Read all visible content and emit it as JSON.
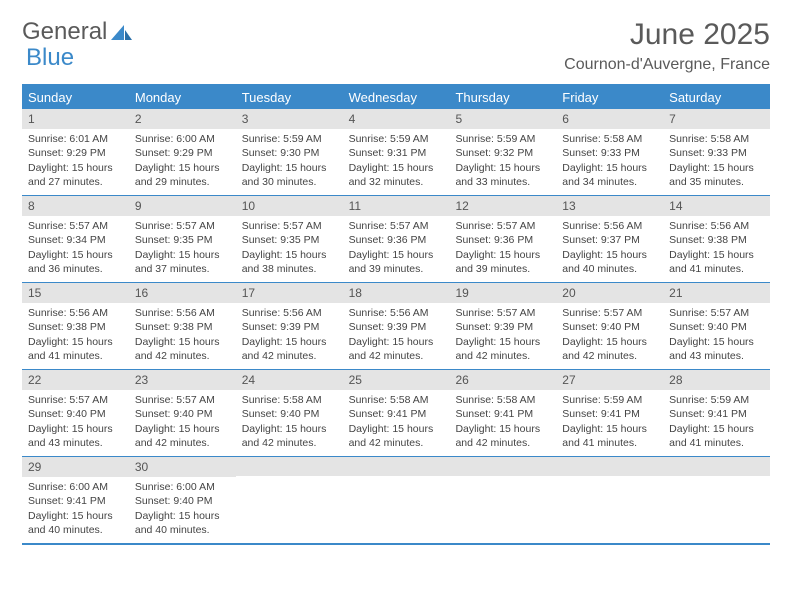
{
  "brand": {
    "part1": "General",
    "part2": "Blue"
  },
  "title": "June 2025",
  "location": "Cournon-d'Auvergne, France",
  "header_bg": "#3b89c9",
  "daynum_bg": "#e4e4e4",
  "text_color": "#444444",
  "day_names": [
    "Sunday",
    "Monday",
    "Tuesday",
    "Wednesday",
    "Thursday",
    "Friday",
    "Saturday"
  ],
  "weeks": [
    [
      {
        "n": "1",
        "sr": "Sunrise: 6:01 AM",
        "ss": "Sunset: 9:29 PM",
        "dl": "Daylight: 15 hours and 27 minutes."
      },
      {
        "n": "2",
        "sr": "Sunrise: 6:00 AM",
        "ss": "Sunset: 9:29 PM",
        "dl": "Daylight: 15 hours and 29 minutes."
      },
      {
        "n": "3",
        "sr": "Sunrise: 5:59 AM",
        "ss": "Sunset: 9:30 PM",
        "dl": "Daylight: 15 hours and 30 minutes."
      },
      {
        "n": "4",
        "sr": "Sunrise: 5:59 AM",
        "ss": "Sunset: 9:31 PM",
        "dl": "Daylight: 15 hours and 32 minutes."
      },
      {
        "n": "5",
        "sr": "Sunrise: 5:59 AM",
        "ss": "Sunset: 9:32 PM",
        "dl": "Daylight: 15 hours and 33 minutes."
      },
      {
        "n": "6",
        "sr": "Sunrise: 5:58 AM",
        "ss": "Sunset: 9:33 PM",
        "dl": "Daylight: 15 hours and 34 minutes."
      },
      {
        "n": "7",
        "sr": "Sunrise: 5:58 AM",
        "ss": "Sunset: 9:33 PM",
        "dl": "Daylight: 15 hours and 35 minutes."
      }
    ],
    [
      {
        "n": "8",
        "sr": "Sunrise: 5:57 AM",
        "ss": "Sunset: 9:34 PM",
        "dl": "Daylight: 15 hours and 36 minutes."
      },
      {
        "n": "9",
        "sr": "Sunrise: 5:57 AM",
        "ss": "Sunset: 9:35 PM",
        "dl": "Daylight: 15 hours and 37 minutes."
      },
      {
        "n": "10",
        "sr": "Sunrise: 5:57 AM",
        "ss": "Sunset: 9:35 PM",
        "dl": "Daylight: 15 hours and 38 minutes."
      },
      {
        "n": "11",
        "sr": "Sunrise: 5:57 AM",
        "ss": "Sunset: 9:36 PM",
        "dl": "Daylight: 15 hours and 39 minutes."
      },
      {
        "n": "12",
        "sr": "Sunrise: 5:57 AM",
        "ss": "Sunset: 9:36 PM",
        "dl": "Daylight: 15 hours and 39 minutes."
      },
      {
        "n": "13",
        "sr": "Sunrise: 5:56 AM",
        "ss": "Sunset: 9:37 PM",
        "dl": "Daylight: 15 hours and 40 minutes."
      },
      {
        "n": "14",
        "sr": "Sunrise: 5:56 AM",
        "ss": "Sunset: 9:38 PM",
        "dl": "Daylight: 15 hours and 41 minutes."
      }
    ],
    [
      {
        "n": "15",
        "sr": "Sunrise: 5:56 AM",
        "ss": "Sunset: 9:38 PM",
        "dl": "Daylight: 15 hours and 41 minutes."
      },
      {
        "n": "16",
        "sr": "Sunrise: 5:56 AM",
        "ss": "Sunset: 9:38 PM",
        "dl": "Daylight: 15 hours and 42 minutes."
      },
      {
        "n": "17",
        "sr": "Sunrise: 5:56 AM",
        "ss": "Sunset: 9:39 PM",
        "dl": "Daylight: 15 hours and 42 minutes."
      },
      {
        "n": "18",
        "sr": "Sunrise: 5:56 AM",
        "ss": "Sunset: 9:39 PM",
        "dl": "Daylight: 15 hours and 42 minutes."
      },
      {
        "n": "19",
        "sr": "Sunrise: 5:57 AM",
        "ss": "Sunset: 9:39 PM",
        "dl": "Daylight: 15 hours and 42 minutes."
      },
      {
        "n": "20",
        "sr": "Sunrise: 5:57 AM",
        "ss": "Sunset: 9:40 PM",
        "dl": "Daylight: 15 hours and 42 minutes."
      },
      {
        "n": "21",
        "sr": "Sunrise: 5:57 AM",
        "ss": "Sunset: 9:40 PM",
        "dl": "Daylight: 15 hours and 43 minutes."
      }
    ],
    [
      {
        "n": "22",
        "sr": "Sunrise: 5:57 AM",
        "ss": "Sunset: 9:40 PM",
        "dl": "Daylight: 15 hours and 43 minutes."
      },
      {
        "n": "23",
        "sr": "Sunrise: 5:57 AM",
        "ss": "Sunset: 9:40 PM",
        "dl": "Daylight: 15 hours and 42 minutes."
      },
      {
        "n": "24",
        "sr": "Sunrise: 5:58 AM",
        "ss": "Sunset: 9:40 PM",
        "dl": "Daylight: 15 hours and 42 minutes."
      },
      {
        "n": "25",
        "sr": "Sunrise: 5:58 AM",
        "ss": "Sunset: 9:41 PM",
        "dl": "Daylight: 15 hours and 42 minutes."
      },
      {
        "n": "26",
        "sr": "Sunrise: 5:58 AM",
        "ss": "Sunset: 9:41 PM",
        "dl": "Daylight: 15 hours and 42 minutes."
      },
      {
        "n": "27",
        "sr": "Sunrise: 5:59 AM",
        "ss": "Sunset: 9:41 PM",
        "dl": "Daylight: 15 hours and 41 minutes."
      },
      {
        "n": "28",
        "sr": "Sunrise: 5:59 AM",
        "ss": "Sunset: 9:41 PM",
        "dl": "Daylight: 15 hours and 41 minutes."
      }
    ],
    [
      {
        "n": "29",
        "sr": "Sunrise: 6:00 AM",
        "ss": "Sunset: 9:41 PM",
        "dl": "Daylight: 15 hours and 40 minutes."
      },
      {
        "n": "30",
        "sr": "Sunrise: 6:00 AM",
        "ss": "Sunset: 9:40 PM",
        "dl": "Daylight: 15 hours and 40 minutes."
      },
      {
        "empty": true
      },
      {
        "empty": true
      },
      {
        "empty": true
      },
      {
        "empty": true
      },
      {
        "empty": true
      }
    ]
  ]
}
